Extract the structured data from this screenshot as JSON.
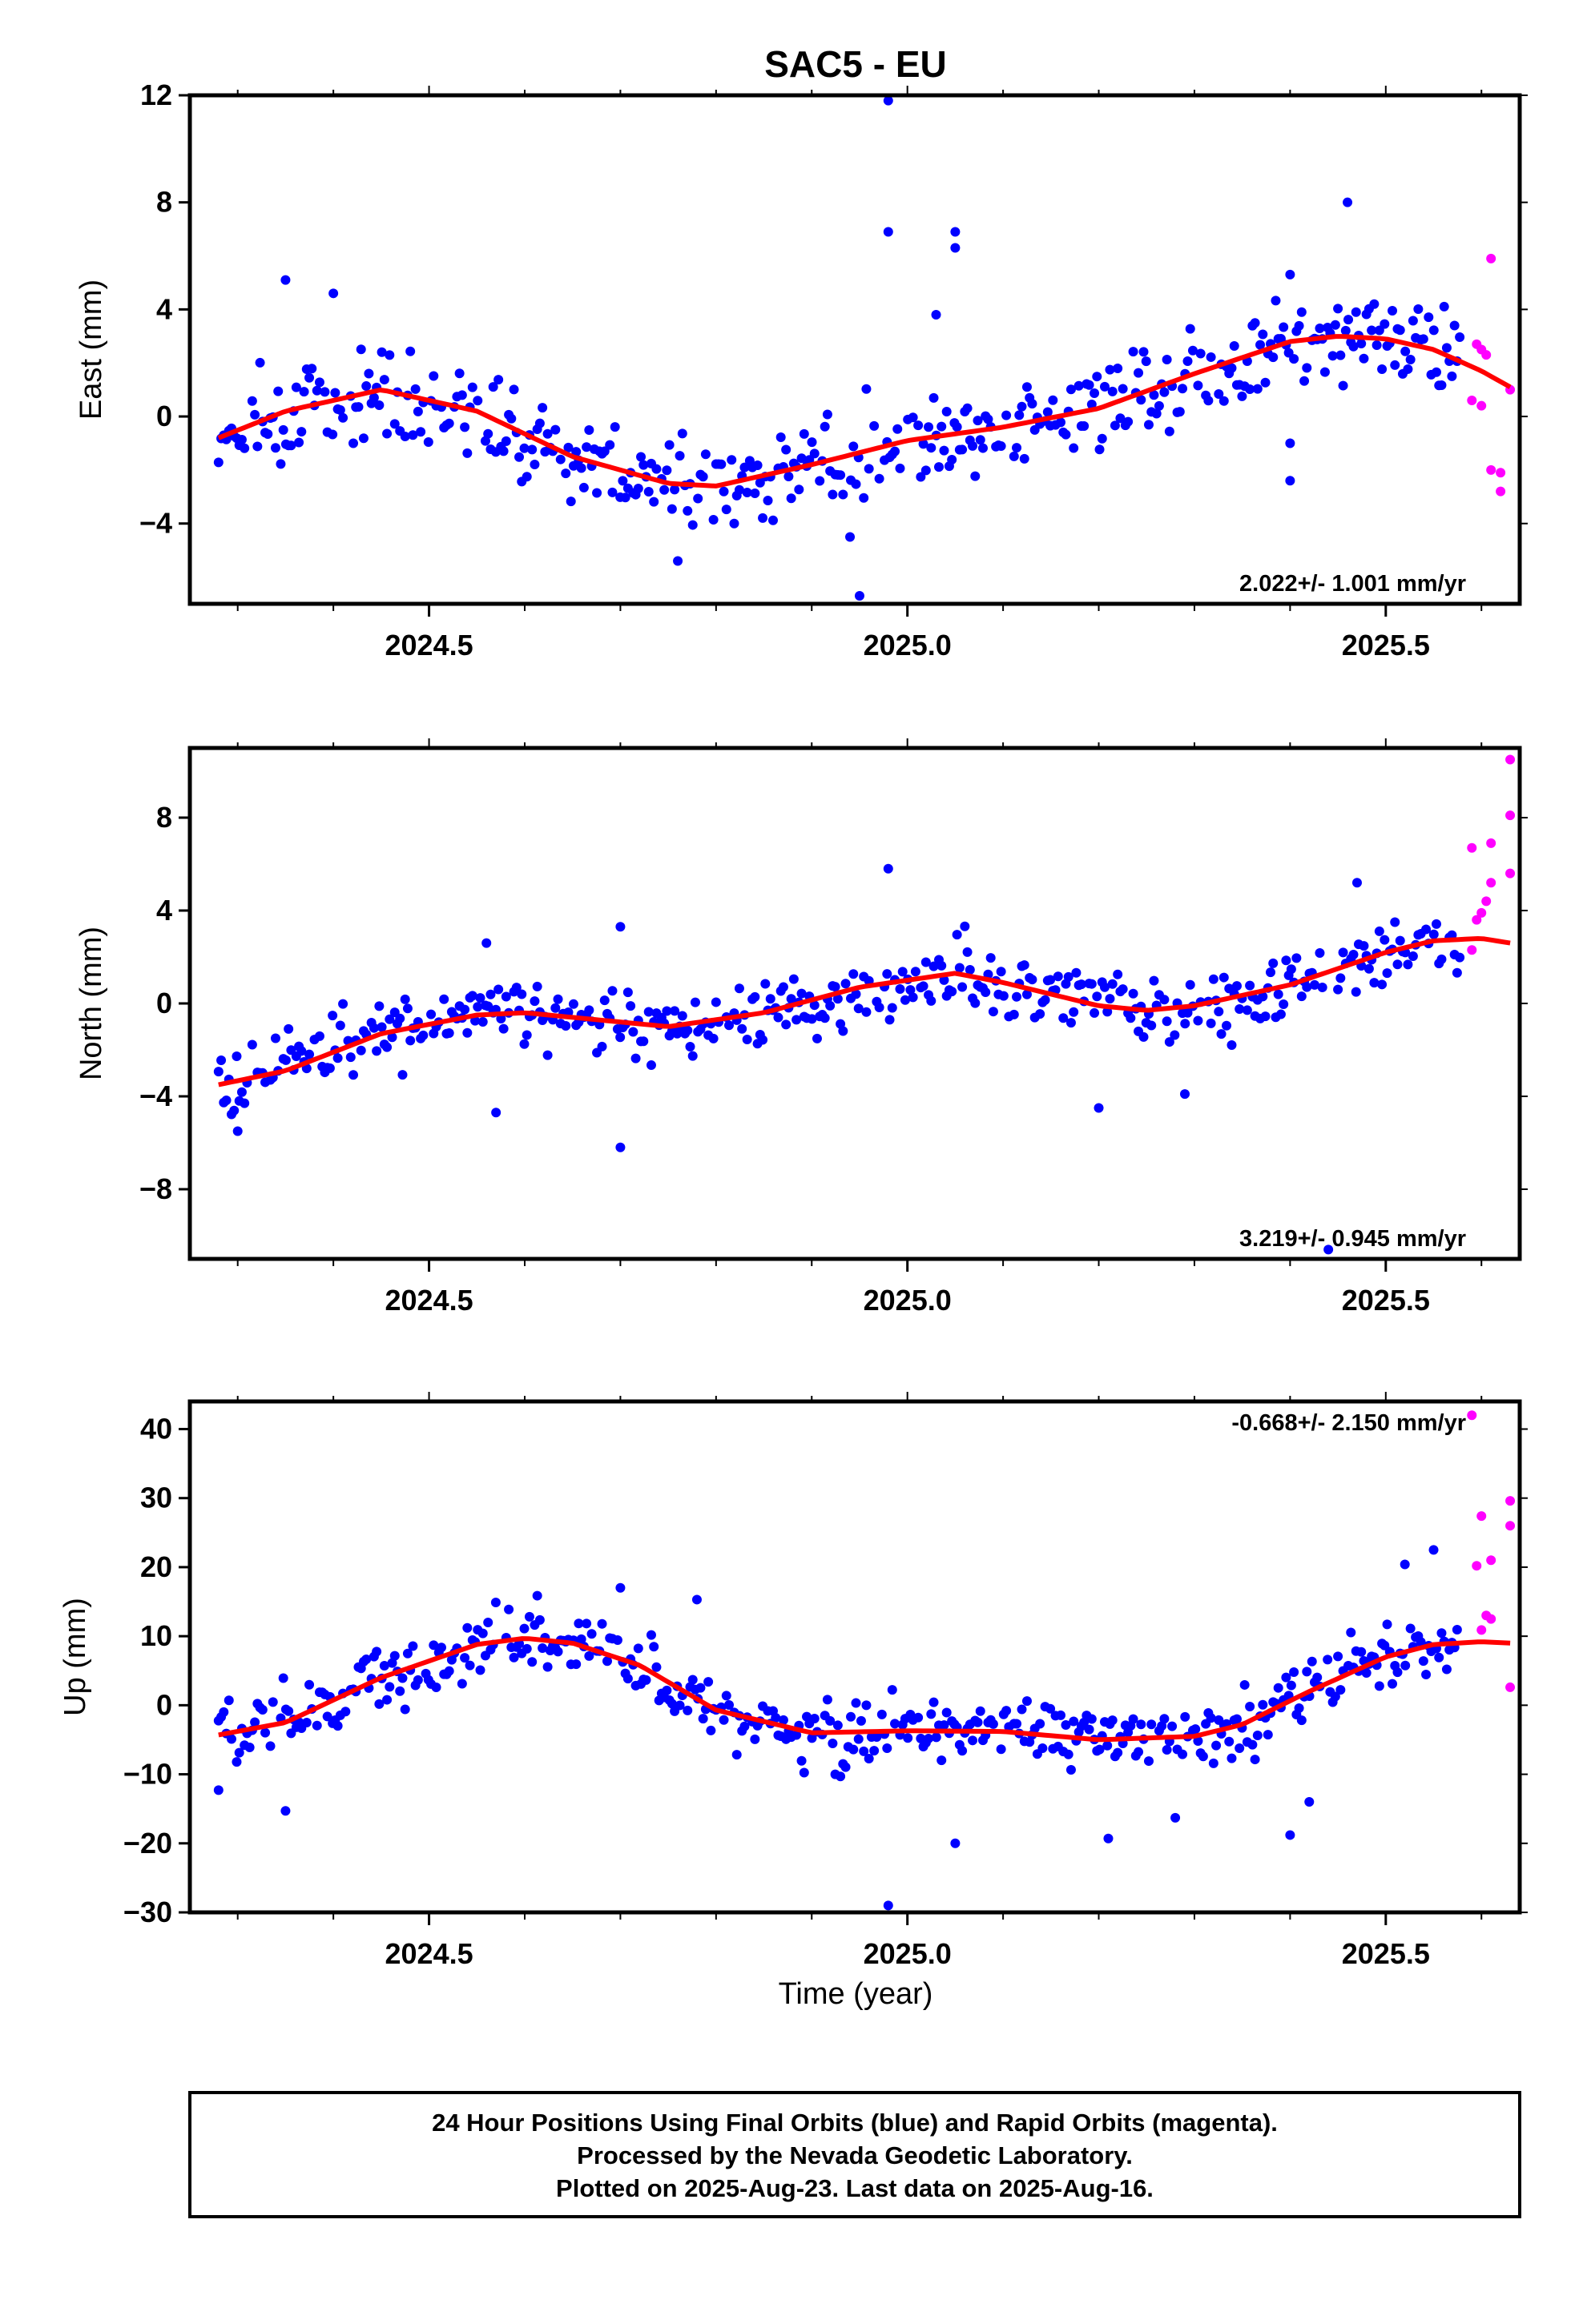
{
  "chart_data": {
    "type": "scatter",
    "title": "SAC5 - EU",
    "xlabel": "Time (year)",
    "xlim": [
      2024.25,
      2025.64
    ],
    "xticks": [
      "2024.5",
      "2025.0",
      "2025.5"
    ],
    "colors": {
      "final": "#0000ff",
      "rapid": "#ff00ff",
      "fit": "#ff0000"
    },
    "panels": [
      {
        "name": "east",
        "ylabel": "East (mm)",
        "ylim": [
          -7,
          12
        ],
        "yticks": [
          "12",
          "8",
          "4",
          "0",
          "−4"
        ],
        "rate": "2.022+/- 1.001 mm/yr",
        "rate_position": "bottom-right",
        "fit": {
          "x": [
            2024.28,
            2024.35,
            2024.45,
            2024.55,
            2024.65,
            2024.75,
            2024.8,
            2024.9,
            2025.0,
            2025.1,
            2025.2,
            2025.3,
            2025.4,
            2025.45,
            2025.5,
            2025.55,
            2025.6,
            2025.63
          ],
          "y": [
            -0.8,
            0.2,
            1.0,
            0.2,
            -1.5,
            -2.5,
            -2.6,
            -1.8,
            -0.9,
            -0.4,
            0.3,
            1.6,
            2.8,
            3.0,
            2.9,
            2.5,
            1.7,
            1.1
          ]
        },
        "outliers": [
          {
            "x": 2024.98,
            "y": 11.8
          },
          {
            "x": 2024.98,
            "y": 6.9
          },
          {
            "x": 2025.05,
            "y": 6.9
          },
          {
            "x": 2025.05,
            "y": 6.3
          },
          {
            "x": 2025.03,
            "y": 3.8
          },
          {
            "x": 2025.46,
            "y": 8.0
          },
          {
            "x": 2024.35,
            "y": 5.1
          },
          {
            "x": 2024.4,
            "y": 4.6
          },
          {
            "x": 2025.4,
            "y": 5.3
          },
          {
            "x": 2024.95,
            "y": -6.7
          },
          {
            "x": 2024.94,
            "y": -4.5
          },
          {
            "x": 2024.76,
            "y": -5.4
          },
          {
            "x": 2025.4,
            "y": -2.4
          },
          {
            "x": 2025.4,
            "y": -1.0
          }
        ],
        "rapid": [
          {
            "x": 2025.595,
            "y": 2.7
          },
          {
            "x": 2025.6,
            "y": 2.5
          },
          {
            "x": 2025.605,
            "y": 2.3
          },
          {
            "x": 2025.59,
            "y": 0.6
          },
          {
            "x": 2025.6,
            "y": 0.4
          },
          {
            "x": 2025.61,
            "y": 5.9
          },
          {
            "x": 2025.61,
            "y": -2.0
          },
          {
            "x": 2025.62,
            "y": -2.1
          },
          {
            "x": 2025.62,
            "y": -2.8
          },
          {
            "x": 2025.63,
            "y": 1.0
          }
        ],
        "scatter": 1.2
      },
      {
        "name": "north",
        "ylabel": "North (mm)",
        "ylim": [
          -11,
          11
        ],
        "yticks": [
          "8",
          "4",
          "0",
          "−4",
          "−8"
        ],
        "rate": "3.219+/- 0.945 mm/yr",
        "rate_position": "bottom-right",
        "fit": {
          "x": [
            2024.28,
            2024.35,
            2024.45,
            2024.55,
            2024.6,
            2024.65,
            2024.75,
            2024.85,
            2024.95,
            2025.05,
            2025.1,
            2025.2,
            2025.25,
            2025.3,
            2025.4,
            2025.5,
            2025.55,
            2025.6,
            2025.63
          ],
          "y": [
            -3.5,
            -2.9,
            -1.3,
            -0.5,
            -0.4,
            -0.6,
            -1.0,
            -0.4,
            0.7,
            1.3,
            0.9,
            -0.1,
            -0.3,
            -0.1,
            0.8,
            2.2,
            2.7,
            2.8,
            2.6
          ]
        },
        "outliers": [
          {
            "x": 2024.98,
            "y": 5.8
          },
          {
            "x": 2024.7,
            "y": 3.3
          },
          {
            "x": 2024.56,
            "y": 2.6
          },
          {
            "x": 2024.7,
            "y": -6.2
          },
          {
            "x": 2024.3,
            "y": -5.5
          },
          {
            "x": 2024.57,
            "y": -4.7
          },
          {
            "x": 2025.2,
            "y": -4.5
          },
          {
            "x": 2025.29,
            "y": -3.9
          },
          {
            "x": 2025.44,
            "y": -10.6
          },
          {
            "x": 2025.47,
            "y": 5.2
          }
        ],
        "rapid": [
          {
            "x": 2025.63,
            "y": 10.5
          },
          {
            "x": 2025.63,
            "y": 8.1
          },
          {
            "x": 2025.61,
            "y": 6.9
          },
          {
            "x": 2025.59,
            "y": 6.7
          },
          {
            "x": 2025.63,
            "y": 5.6
          },
          {
            "x": 2025.61,
            "y": 5.2
          },
          {
            "x": 2025.605,
            "y": 4.4
          },
          {
            "x": 2025.6,
            "y": 3.9
          },
          {
            "x": 2025.595,
            "y": 3.6
          },
          {
            "x": 2025.59,
            "y": 2.3
          }
        ],
        "scatter": 1.1
      },
      {
        "name": "up",
        "ylabel": "Up (mm)",
        "ylim": [
          -30,
          44
        ],
        "yticks": [
          "40",
          "30",
          "20",
          "10",
          "0",
          "−10",
          "−20",
          "−30"
        ],
        "rate": "-0.668+/- 2.150 mm/yr",
        "rate_position": "top-right",
        "fit": {
          "x": [
            2024.28,
            2024.35,
            2024.45,
            2024.55,
            2024.6,
            2024.65,
            2024.72,
            2024.8,
            2024.9,
            2025.0,
            2025.1,
            2025.2,
            2025.3,
            2025.35,
            2025.42,
            2025.5,
            2025.55,
            2025.6,
            2025.63
          ],
          "y": [
            -4.3,
            -2.5,
            4.0,
            8.8,
            9.7,
            9.0,
            5.8,
            -0.7,
            -4.0,
            -3.7,
            -3.8,
            -5.0,
            -4.5,
            -2.8,
            2.0,
            7.0,
            8.8,
            9.2,
            9.0
          ]
        },
        "outliers": [
          {
            "x": 2024.98,
            "y": -29.0
          },
          {
            "x": 2025.05,
            "y": -20.0
          },
          {
            "x": 2025.4,
            "y": -18.8
          },
          {
            "x": 2025.21,
            "y": -19.3
          },
          {
            "x": 2024.35,
            "y": -15.3
          },
          {
            "x": 2025.28,
            "y": -16.3
          },
          {
            "x": 2024.28,
            "y": -12.3
          },
          {
            "x": 2025.42,
            "y": -14.0
          },
          {
            "x": 2025.52,
            "y": 20.4
          },
          {
            "x": 2025.55,
            "y": 22.5
          },
          {
            "x": 2024.7,
            "y": 17.0
          },
          {
            "x": 2024.78,
            "y": 15.3
          }
        ],
        "rapid": [
          {
            "x": 2025.59,
            "y": 42.0
          },
          {
            "x": 2025.63,
            "y": 29.6
          },
          {
            "x": 2025.63,
            "y": 26.0
          },
          {
            "x": 2025.6,
            "y": 27.4
          },
          {
            "x": 2025.61,
            "y": 21.0
          },
          {
            "x": 2025.595,
            "y": 20.2
          },
          {
            "x": 2025.605,
            "y": 13.0
          },
          {
            "x": 2025.61,
            "y": 12.5
          },
          {
            "x": 2025.6,
            "y": 10.9
          },
          {
            "x": 2025.63,
            "y": 2.6
          }
        ],
        "scatter": 3.5
      }
    ]
  },
  "footer": {
    "line1": "24 Hour Positions Using Final Orbits (blue) and Rapid Orbits (magenta).",
    "line2": "Processed by the Nevada Geodetic Laboratory.",
    "line3": "Plotted on 2025-Aug-23. Last data on 2025-Aug-16."
  }
}
